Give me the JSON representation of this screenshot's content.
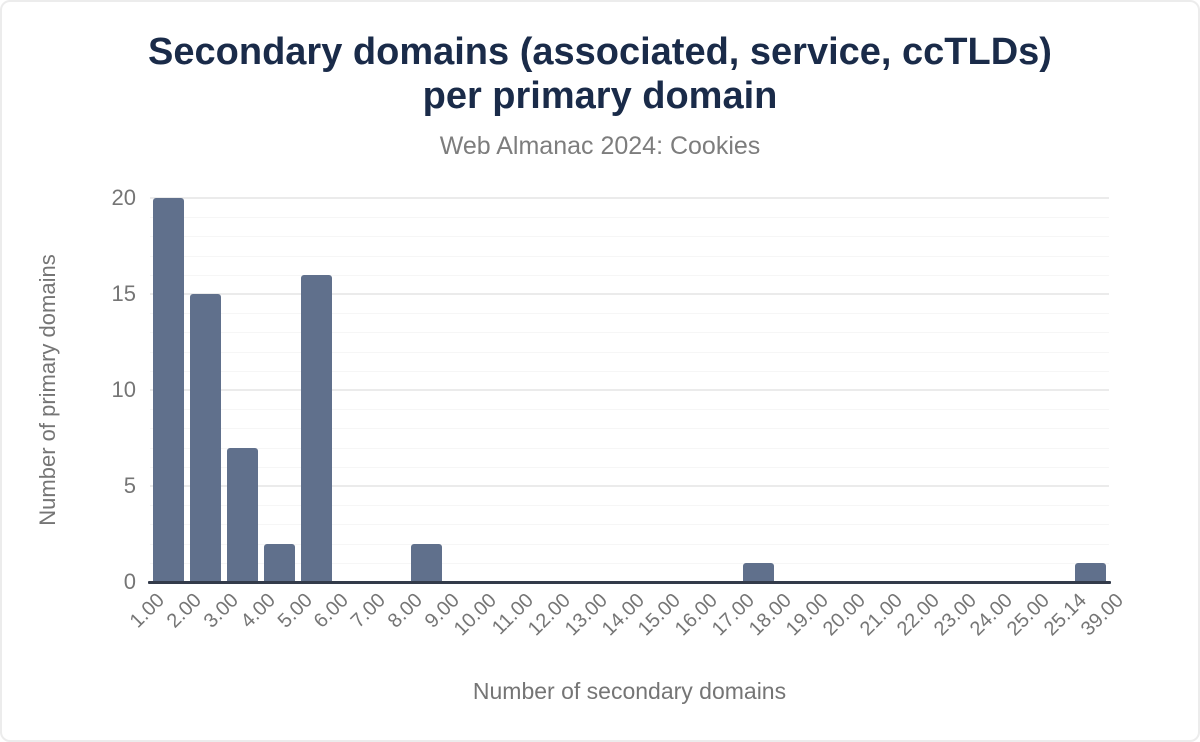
{
  "header": {
    "title_line1": "Secondary domains (associated, service, ccTLDs)",
    "title_line2": "per primary domain",
    "subtitle": "Web Almanac 2024: Cookies"
  },
  "chart_data": {
    "type": "bar",
    "subtype": "histogram",
    "title": "Secondary domains (associated, service, ccTLDs) per primary domain",
    "subtitle": "Web Almanac 2024: Cookies",
    "xlabel": "Number of secondary domains",
    "ylabel": "Number of primary domains",
    "bucket_boundaries": [
      "1.00",
      "2.00",
      "3.00",
      "4.00",
      "5.00",
      "6.00",
      "7.00",
      "8.00",
      "9.00",
      "10.00",
      "11.00",
      "12.00",
      "13.00",
      "14.00",
      "15.00",
      "16.00",
      "17.00",
      "18.00",
      "19.00",
      "20.00",
      "21.00",
      "22.00",
      "23.00",
      "24.00",
      "25.00",
      "25.14",
      "39.00"
    ],
    "counts": [
      20,
      15,
      7,
      2,
      16,
      0,
      0,
      2,
      0,
      0,
      0,
      0,
      0,
      0,
      0,
      0,
      1,
      0,
      0,
      0,
      0,
      0,
      0,
      0,
      0,
      1
    ],
    "yticks": [
      0,
      5,
      10,
      15,
      20
    ],
    "ylim": [
      0,
      20
    ],
    "grid": {
      "orientation": "horizontal",
      "minor_every": 1,
      "major_every": 5
    },
    "legend": "none",
    "colors": {
      "bar": "#60708C",
      "title": "#1A2B49",
      "subtitle": "#7D7D7D",
      "axis_text": "#757575",
      "baseline": "#333B4A",
      "gridline_major": "#EBEBEB",
      "gridline_minor": "#F6F6F6",
      "background": "#FFFFFF"
    }
  }
}
